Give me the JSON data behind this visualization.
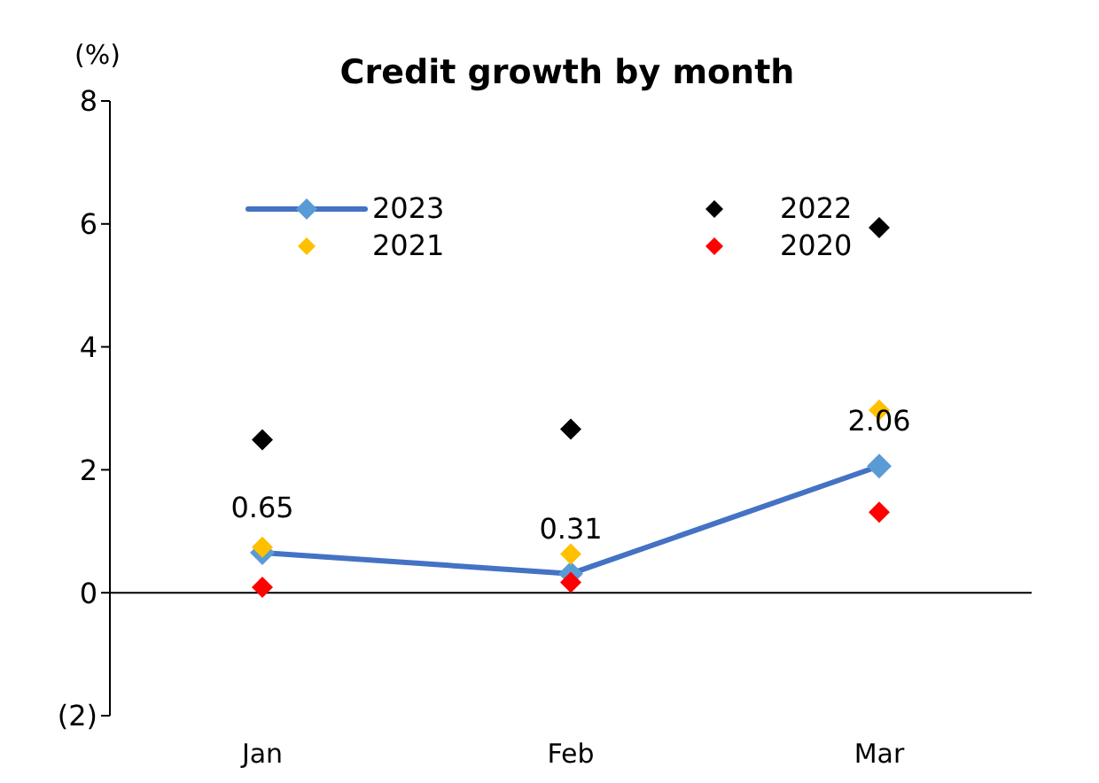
{
  "chart_data": {
    "type": "line",
    "title": "Credit growth by month",
    "ylabel": "(%)",
    "categories": [
      "Jan",
      "Feb",
      "Mar"
    ],
    "series": [
      {
        "name": "2023",
        "color": "#4472c4",
        "values": [
          0.65,
          0.31,
          2.06
        ],
        "value_labels": [
          "0.65",
          "0.31",
          "2.06"
        ]
      },
      {
        "name": "2022",
        "type": "scatter",
        "color": "#000000",
        "values": [
          2.49,
          2.66,
          5.94
        ]
      },
      {
        "name": "2021",
        "type": "scatter",
        "color": "#ffc000",
        "values": [
          0.74,
          0.63,
          2.97
        ]
      },
      {
        "name": "2020",
        "type": "scatter",
        "color": "#ff0000",
        "values": [
          0.09,
          0.17,
          1.31
        ]
      }
    ],
    "ylim": [
      -2,
      8
    ],
    "yticks": [
      {
        "value": -2,
        "label": "(2)"
      },
      0,
      2,
      4,
      6,
      8
    ],
    "ref_lines": [
      {
        "axis": "y",
        "value": 0,
        "color": "#000000"
      }
    ],
    "legend": "top",
    "marker": "diamond",
    "line_style": "solid"
  }
}
